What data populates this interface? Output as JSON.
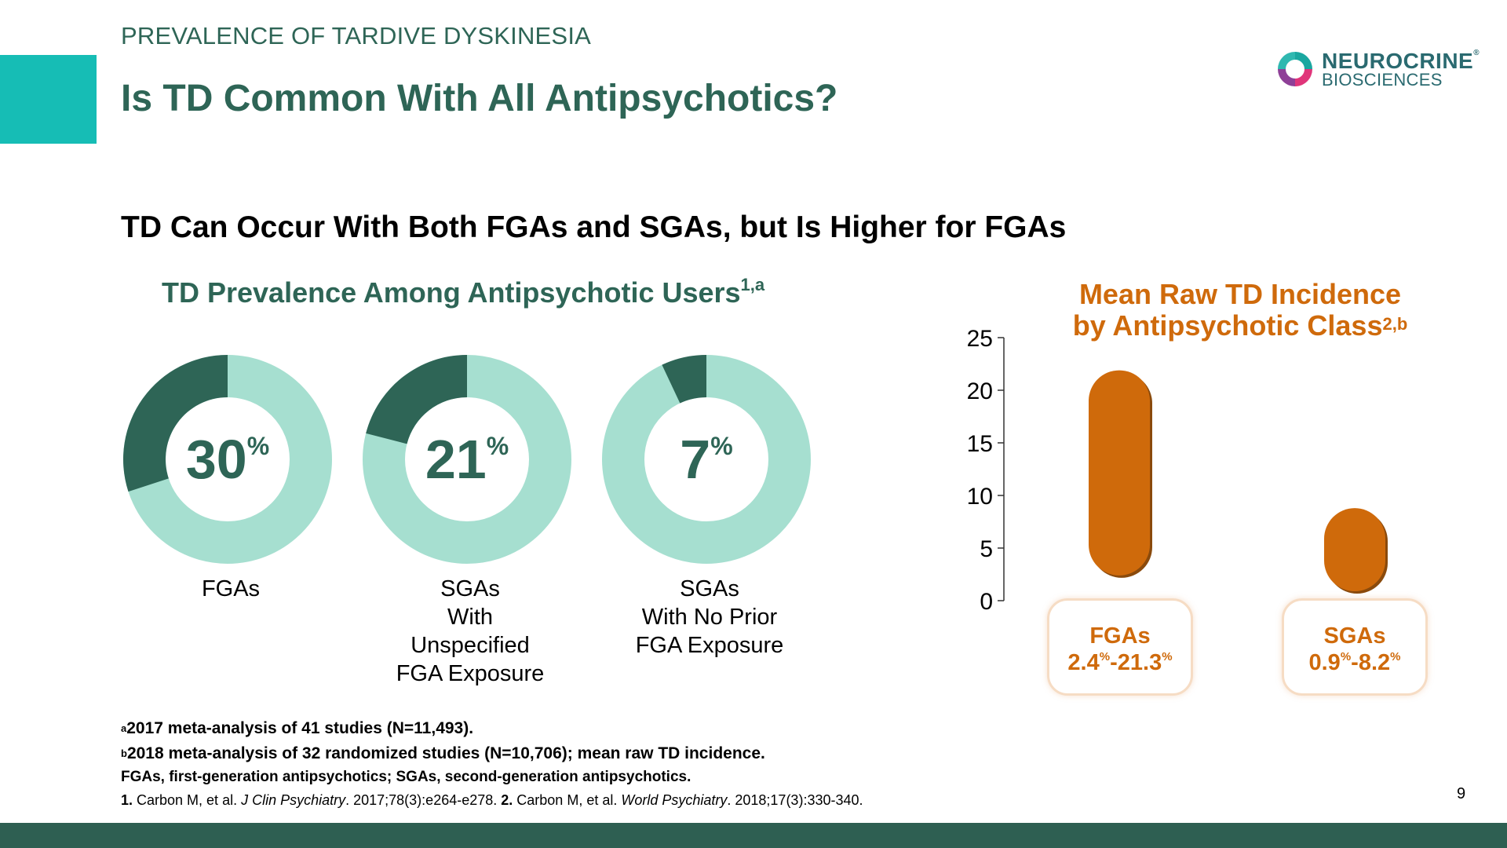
{
  "header": {
    "kicker": "PREVALENCE OF TARDIVE DYSKINESIA",
    "title": "Is TD Common With All Antipsychotics?"
  },
  "logo": {
    "name": "NEUROCRINE",
    "trademark": "®",
    "sub": "BIOSCIENCES"
  },
  "subtitle": "TD Can Occur With Both FGAs and SGAs, but Is Higher for FGAs",
  "colors": {
    "brand_teal": "#16bdb5",
    "dark_green": "#2e6556",
    "light_mint": "#a6dfd0",
    "orange": "#cf6a0b",
    "footer_green": "#2e5f52"
  },
  "chart_data": [
    {
      "type": "pie",
      "title": "TD Prevalence Among Antipsychotic Users",
      "title_sup": "1,a",
      "unit": "%",
      "slices": [
        {
          "label_lines": [
            "FGAs"
          ],
          "value": 30
        },
        {
          "label_lines": [
            "SGAs",
            "With",
            "Unspecified",
            "FGA Exposure"
          ],
          "value": 21
        },
        {
          "label_lines": [
            "SGAs",
            "With No Prior",
            "FGA Exposure"
          ],
          "value": 7
        }
      ]
    },
    {
      "type": "bar",
      "title_lines": [
        "Mean Raw TD Incidence",
        "by Antipsychotic Class"
      ],
      "title_sup": "2,b",
      "ylim": [
        0,
        25
      ],
      "yticks": [
        0,
        5,
        10,
        15,
        20,
        25
      ],
      "categories": [
        "FGAs",
        "SGAs"
      ],
      "ranges": [
        {
          "name": "FGAs",
          "low": 2.4,
          "high": 21.3,
          "low_label": "2.4",
          "high_label": "21.3"
        },
        {
          "name": "SGAs",
          "low": 0.9,
          "high": 8.2,
          "low_label": "0.9",
          "high_label": "8.2"
        }
      ],
      "unit": "%"
    }
  ],
  "footnotes": {
    "a_mark": "a",
    "a": "2017 meta-analysis of 41 studies (N=11,493).",
    "b_mark": "b",
    "b": "2018 meta-analysis of 32 randomized studies (N=10,706); mean raw TD incidence.",
    "abbreviations": "FGAs, first-generation antipsychotics; SGAs, second-generation antipsychotics.",
    "ref1_num": "1.",
    "ref1_authors": " Carbon M, et al. ",
    "ref1_journal": "J Clin Psychiatry",
    "ref1_rest": ". 2017;78(3):e264-e278. ",
    "ref2_num": "2.",
    "ref2_authors": " Carbon M, et al. ",
    "ref2_journal": "World Psychiatry",
    "ref2_rest": ". 2018;17(3):330-340."
  },
  "page_number": "9"
}
